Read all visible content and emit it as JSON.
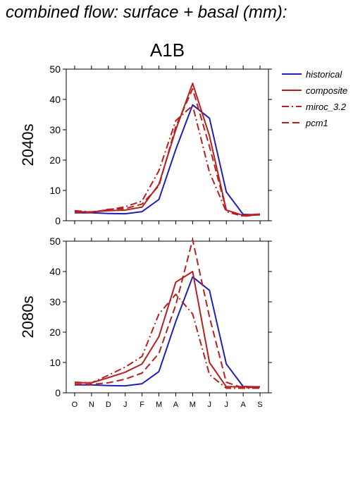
{
  "page_title": "combined flow: surface + basal (mm):",
  "colors": {
    "historical": "#2020b8",
    "scenario": "#b81f1f",
    "axis": "#000000"
  },
  "chart_data": [
    {
      "type": "line",
      "title": "A1B",
      "ylabel": "2040s",
      "xlabel": "",
      "categories": [
        "O",
        "N",
        "D",
        "J",
        "F",
        "M",
        "A",
        "M",
        "J",
        "J",
        "A",
        "S"
      ],
      "ylim": [
        0,
        50
      ],
      "yticks": [
        0,
        10,
        20,
        30,
        40,
        50
      ],
      "grid": false,
      "legend": "outside-top-right",
      "series": [
        {
          "name": "historical",
          "style": "solid",
          "color": "#2020b8",
          "values": [
            2.6,
            2.6,
            2.4,
            2.3,
            3.0,
            7.0,
            23.5,
            38.2,
            33.8,
            9.5,
            2.1,
            1.9
          ]
        },
        {
          "name": "composite",
          "style": "solid",
          "color": "#b81f1f",
          "values": [
            3.0,
            2.9,
            3.3,
            3.5,
            4.5,
            12.0,
            30.0,
            45.3,
            28.0,
            3.5,
            1.8,
            2.2
          ]
        },
        {
          "name": "miroc_3.2",
          "style": "dashdot",
          "color": "#b81f1f",
          "values": [
            3.3,
            2.9,
            3.6,
            4.6,
            6.5,
            16.5,
            33.0,
            38.0,
            16.0,
            3.0,
            1.5,
            2.0
          ]
        },
        {
          "name": "pcm1",
          "style": "dashed",
          "color": "#b81f1f",
          "values": [
            2.8,
            2.7,
            3.8,
            4.0,
            5.5,
            11.5,
            31.0,
            43.5,
            24.5,
            3.5,
            1.6,
            2.0
          ]
        }
      ]
    },
    {
      "type": "line",
      "title": "",
      "ylabel": "2080s",
      "xlabel": "",
      "categories": [
        "O",
        "N",
        "D",
        "J",
        "F",
        "M",
        "A",
        "M",
        "J",
        "J",
        "A",
        "S"
      ],
      "ylim": [
        0,
        50
      ],
      "yticks": [
        0,
        10,
        20,
        30,
        40,
        50
      ],
      "grid": false,
      "series": [
        {
          "name": "historical",
          "style": "solid",
          "color": "#2020b8",
          "values": [
            2.6,
            2.6,
            2.4,
            2.3,
            3.0,
            7.0,
            23.5,
            38.2,
            33.8,
            9.5,
            2.1,
            1.9
          ]
        },
        {
          "name": "composite",
          "style": "solid",
          "color": "#b81f1f",
          "values": [
            3.3,
            3.3,
            5.0,
            6.8,
            9.5,
            18.5,
            36.5,
            40.0,
            10.0,
            2.0,
            2.0,
            2.0
          ]
        },
        {
          "name": "miroc_3.2",
          "style": "dashdot",
          "color": "#b81f1f",
          "values": [
            3.5,
            3.3,
            5.8,
            8.5,
            12.0,
            26.0,
            32.5,
            26.0,
            6.0,
            1.5,
            1.5,
            1.5
          ]
        },
        {
          "name": "pcm1",
          "style": "dashed",
          "color": "#b81f1f",
          "values": [
            2.8,
            2.8,
            3.3,
            4.5,
            6.5,
            13.0,
            29.0,
            50.5,
            25.0,
            3.5,
            1.6,
            2.0
          ]
        }
      ]
    }
  ]
}
